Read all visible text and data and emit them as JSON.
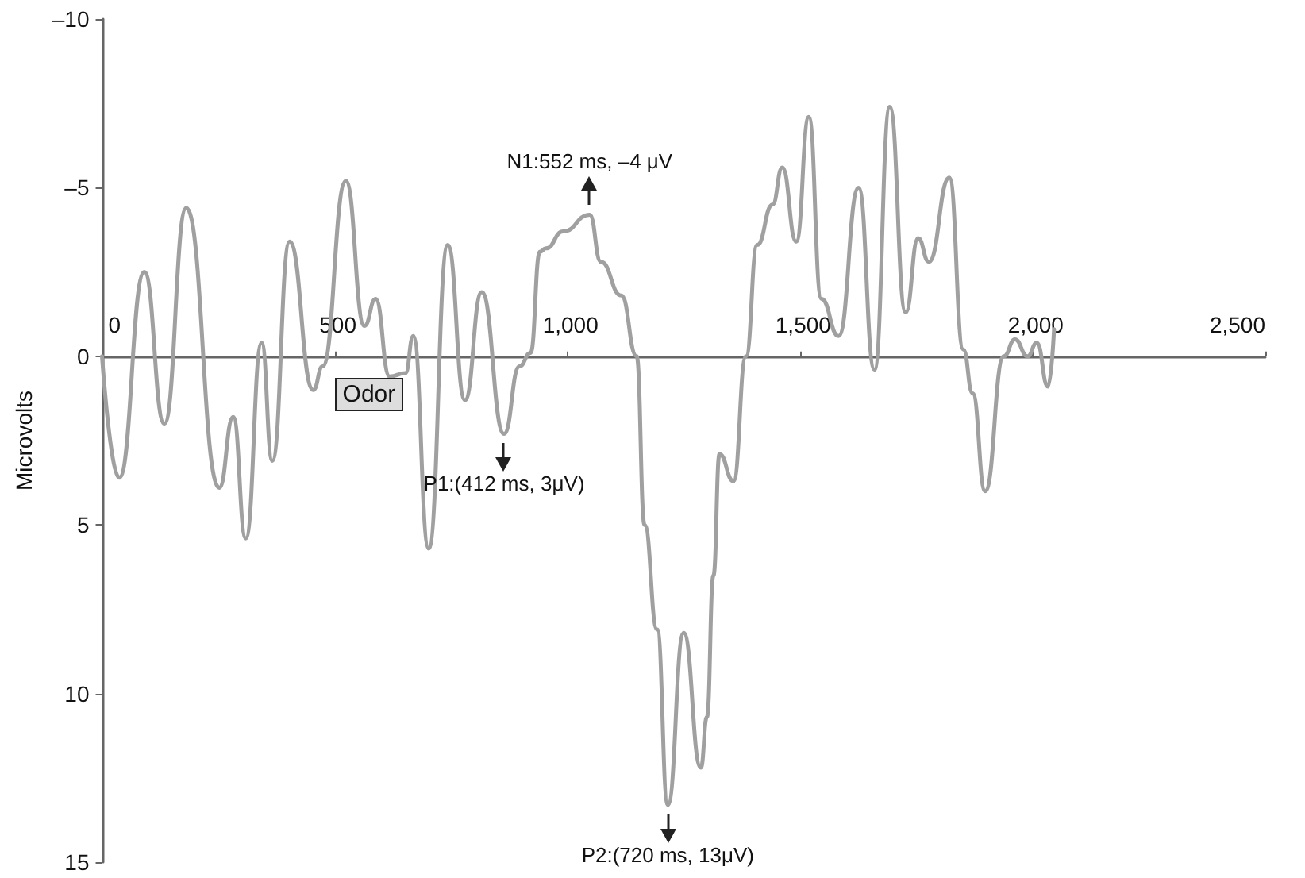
{
  "chart_data": {
    "type": "line",
    "ylabel": "Microvolts",
    "x": [
      0,
      37,
      91,
      134,
      181,
      252,
      282,
      309,
      343,
      366,
      403,
      454,
      474,
      524,
      564,
      588,
      618,
      652,
      669,
      702,
      743,
      780,
      816,
      864,
      897,
      921,
      941,
      954,
      991,
      1048,
      1072,
      1116,
      1149,
      1166,
      1193,
      1216,
      1250,
      1287,
      1300,
      1314,
      1327,
      1357,
      1384,
      1408,
      1441,
      1462,
      1492,
      1519,
      1546,
      1583,
      1626,
      1660,
      1693,
      1727,
      1754,
      1777,
      1821,
      1851,
      1871,
      1898,
      1938,
      1962,
      1989,
      2009,
      2033,
      2046
    ],
    "values": [
      0,
      3.6,
      -2.5,
      2.0,
      -4.4,
      3.9,
      1.8,
      5.4,
      -0.4,
      3.1,
      -3.4,
      1.0,
      0.3,
      -5.2,
      -0.9,
      -1.7,
      0.6,
      0.5,
      -0.6,
      5.7,
      -3.3,
      1.3,
      -1.9,
      2.3,
      0.3,
      -0.1,
      -3.1,
      -3.2,
      -3.7,
      -4.2,
      -2.8,
      -1.8,
      0,
      5,
      8.1,
      13.3,
      8.2,
      12.2,
      10.7,
      6.5,
      2.9,
      3.7,
      0,
      -3.3,
      -4.5,
      -5.6,
      -3.4,
      -7.1,
      -1.7,
      -0.6,
      -5.0,
      0.4,
      -7.4,
      -1.3,
      -3.5,
      -2.8,
      -5.3,
      -0.2,
      1.1,
      4.0,
      0,
      -0.5,
      0,
      -0.4,
      0.9,
      -0.8
    ],
    "color": "#a0a0a0",
    "marker": "none",
    "line_style": "solid",
    "grid": false,
    "xlim": [
      0,
      2500
    ],
    "xticks": [
      0,
      500,
      {
        "value": 1000,
        "label": "1,000"
      },
      {
        "value": 1500,
        "label": "1,500"
      },
      {
        "value": 2000,
        "label": "2,000"
      },
      {
        "value": 2500,
        "label": "2,500"
      }
    ],
    "ylim": [
      15,
      -10
    ],
    "yticks": [
      {
        "value": -10,
        "label": "–10"
      },
      {
        "value": -5,
        "label": "–5"
      },
      0,
      5,
      10,
      15
    ],
    "annotations": [
      "Odor",
      {
        "text": "N1:552 ms, –4 μV",
        "x": 1048,
        "y": -4.2
      },
      {
        "text": "P1:(412 ms, 3μV)",
        "x": 864,
        "y": 2.3
      },
      {
        "text": "P2:(720 ms, 13μV)",
        "x": 1216,
        "y": 13.3
      }
    ]
  }
}
